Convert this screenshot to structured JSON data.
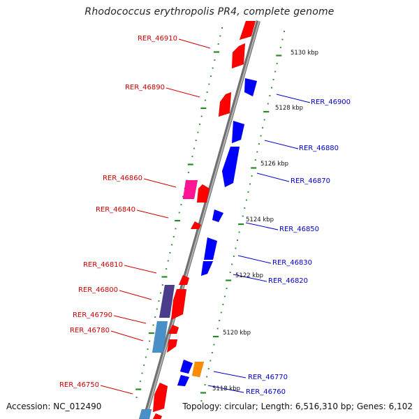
{
  "title": "Rhodococcus erythropolis PR4, complete genome",
  "accession": "Accession: NC_012490",
  "topology": "Topology: circular; Length: 6,516,310 bp; Genes: 6,102",
  "colors": {
    "left_label": "#cc0000",
    "right_label": "#0000cc",
    "tick": "#228b22",
    "backbone": "#8a8a8a"
  },
  "scale_labels": [
    "5130 kbp",
    "5128 kbp",
    "5126 kbp",
    "5124 kbp",
    "5122 kbp",
    "5120 kbp",
    "5118 kbp"
  ],
  "left_genes": [
    "RER_46910",
    "RER_46890",
    "RER_46860",
    "RER_46840",
    "RER_46810",
    "RER_46800",
    "RER_46790",
    "RER_46780",
    "RER_46750"
  ],
  "right_genes": [
    "RER_46900",
    "RER_46880",
    "RER_46870",
    "RER_46850",
    "RER_46830",
    "RER_46820",
    "RER_46770",
    "RER_46760"
  ]
}
